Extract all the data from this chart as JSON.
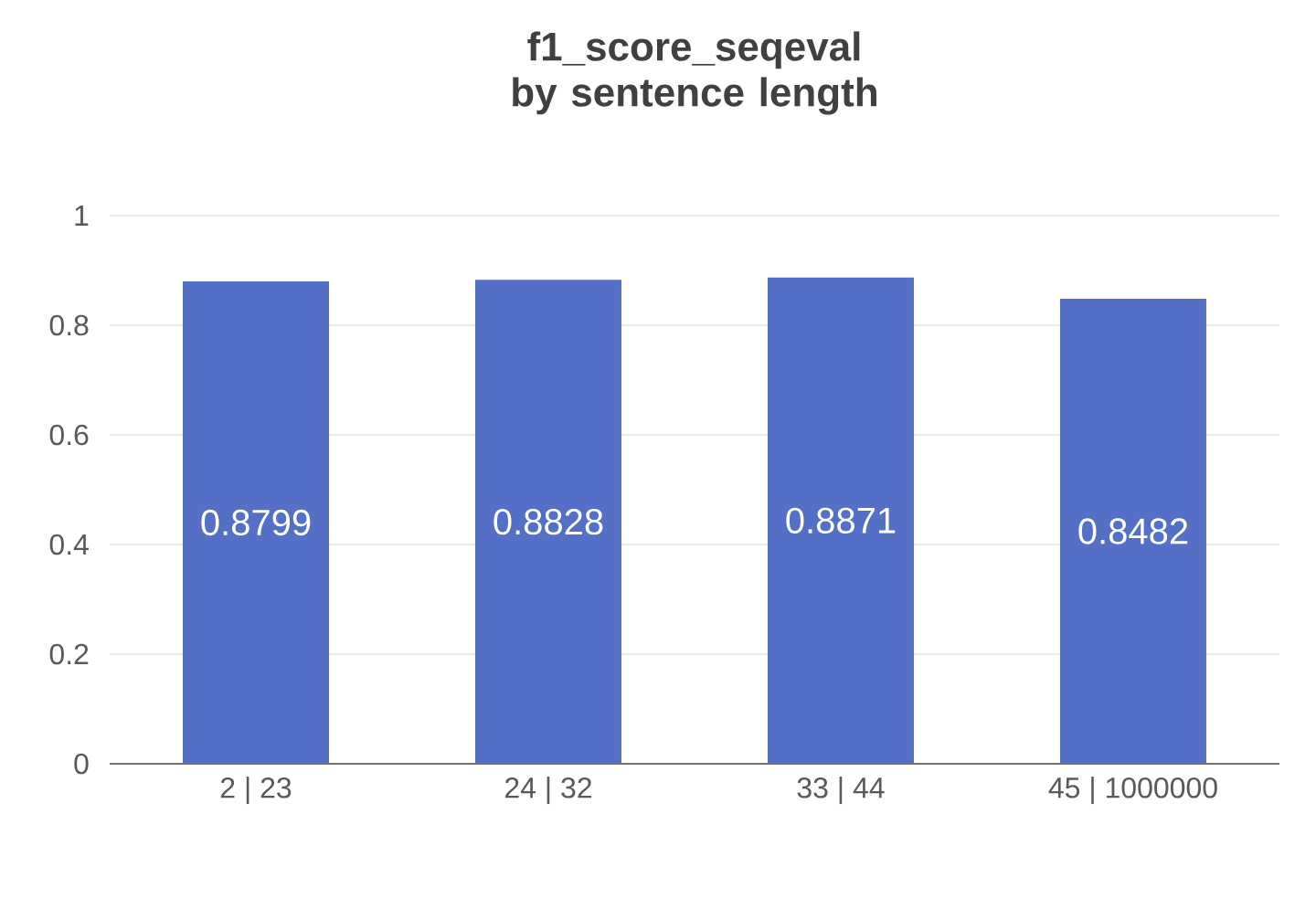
{
  "chart_data": {
    "type": "bar",
    "title": "f1_score_seqeval by sentence length",
    "categories": [
      "2 | 23",
      "24 | 32",
      "33 | 44",
      "45 | 1000000"
    ],
    "values": [
      0.8799,
      0.8828,
      0.8871,
      0.8482
    ],
    "color": "#5470c6",
    "ylim": [
      0,
      1
    ],
    "yticks": [
      0,
      0.2,
      0.4,
      0.6,
      0.8,
      1
    ],
    "grid": "y",
    "data_labels": true
  }
}
